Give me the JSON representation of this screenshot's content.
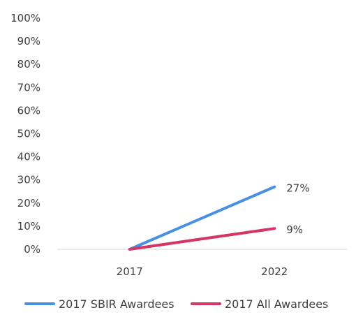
{
  "chart_data": {
    "type": "line",
    "categories": [
      "2017",
      "2022"
    ],
    "series": [
      {
        "name": "2017 SBIR Awardees",
        "values": [
          0,
          27
        ],
        "color": "#4a90e2"
      },
      {
        "name": "2017 All Awardees",
        "values": [
          0,
          9
        ],
        "color": "#d43565"
      }
    ],
    "data_labels": [
      "27%",
      "9%"
    ],
    "y_ticks": [
      "0%",
      "10%",
      "20%",
      "30%",
      "40%",
      "50%",
      "60%",
      "70%",
      "80%",
      "90%",
      "100%"
    ],
    "ylim": [
      0,
      100
    ],
    "grid": false,
    "legend_position": "bottom",
    "title": "",
    "xlabel": "",
    "ylabel": "",
    "axis_color": "#d9d9d9",
    "text_color": "#404040"
  }
}
